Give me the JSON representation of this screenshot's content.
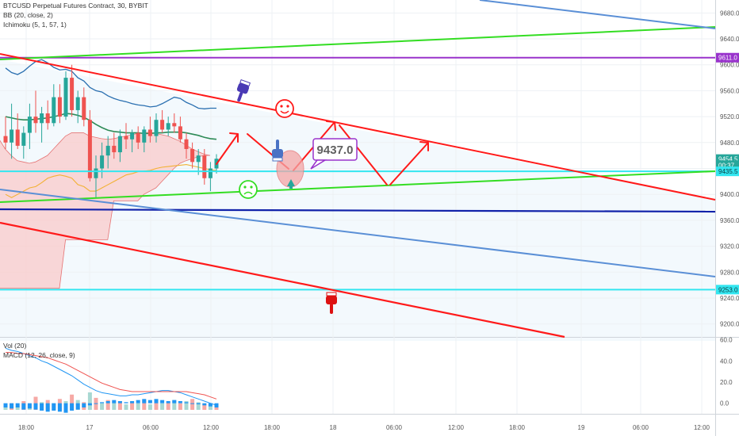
{
  "header": {
    "symbol_line": "BTCUSD Perpetual Futures Contract, 30, BYBIT",
    "bb_line": "BB (20, close, 2)",
    "ichimoku_line": "Ichimoku (5, 1, 57, 1)"
  },
  "volume_panel": {
    "vol_label": "Vol (20)",
    "macd_label": "MACD (12, 26, close, 9)"
  },
  "annotation": {
    "text": "9437.0"
  },
  "colors": {
    "candle_up": "#26a69a",
    "candle_down": "#ef5350",
    "trend_red": "#ff1a1a",
    "trend_green": "#33dd22",
    "trend_blue": "#5a8fd6",
    "hline_cyan": "#33e6f0",
    "hline_purple": "#9933cc",
    "hline_navy": "#1122aa",
    "channel_fill": "#eef6fc",
    "cloud_fill": "#f9c9c9"
  },
  "chart_data": [
    {
      "type": "candlestick",
      "title": "BTCUSD Perpetual Futures Contract, 30, BYBIT",
      "ylim": [
        9180,
        9700
      ],
      "y_ticks": [
        "9680.0",
        "9640.0",
        "9600.0",
        "9560.0",
        "9520.0",
        "9480.0",
        "9440.0",
        "9400.0",
        "9360.0",
        "9320.0",
        "9280.0",
        "9240.0",
        "9200.0"
      ],
      "x_ticks": [
        "18:00",
        "17",
        "06:00",
        "12:00",
        "18:00",
        "18",
        "06:00",
        "12:00",
        "18:00",
        "19",
        "06:00",
        "12:00"
      ],
      "price_labels": [
        {
          "text": "9611.0",
          "value": 9611,
          "color": "#9933cc"
        },
        {
          "text": "9454.5",
          "value": 9454.5,
          "color": "#26a69a"
        },
        {
          "text": "00:37",
          "value": 9445,
          "color": "#26a69a"
        },
        {
          "text": "9435.5",
          "value": 9435.5,
          "color": "#33e6f0"
        },
        {
          "text": "9253.0",
          "value": 9253,
          "color": "#33e6f0"
        }
      ],
      "horizontal_levels": [
        {
          "value": 9611,
          "color": "#9933cc"
        },
        {
          "value": 9435.5,
          "color": "#33e6f0"
        },
        {
          "value": 9253,
          "color": "#33e6f0"
        },
        {
          "value": 9372,
          "color": "#1122aa"
        }
      ],
      "candles": [
        {
          "o": 9490,
          "h": 9520,
          "l": 9470,
          "c": 9480
        },
        {
          "o": 9480,
          "h": 9540,
          "l": 9455,
          "c": 9500
        },
        {
          "o": 9500,
          "h": 9525,
          "l": 9470,
          "c": 9475
        },
        {
          "o": 9475,
          "h": 9505,
          "l": 9455,
          "c": 9495
        },
        {
          "o": 9495,
          "h": 9540,
          "l": 9470,
          "c": 9520
        },
        {
          "o": 9520,
          "h": 9560,
          "l": 9495,
          "c": 9510
        },
        {
          "o": 9510,
          "h": 9535,
          "l": 9480,
          "c": 9525
        },
        {
          "o": 9525,
          "h": 9545,
          "l": 9500,
          "c": 9510
        },
        {
          "o": 9510,
          "h": 9570,
          "l": 9505,
          "c": 9550
        },
        {
          "o": 9550,
          "h": 9570,
          "l": 9510,
          "c": 9520
        },
        {
          "o": 9520,
          "h": 9590,
          "l": 9515,
          "c": 9580
        },
        {
          "o": 9580,
          "h": 9600,
          "l": 9520,
          "c": 9530
        },
        {
          "o": 9530,
          "h": 9560,
          "l": 9510,
          "c": 9550
        },
        {
          "o": 9550,
          "h": 9565,
          "l": 9505,
          "c": 9515
        },
        {
          "o": 9515,
          "h": 9530,
          "l": 9420,
          "c": 9425
        },
        {
          "o": 9425,
          "h": 9460,
          "l": 9395,
          "c": 9440
        },
        {
          "o": 9440,
          "h": 9480,
          "l": 9425,
          "c": 9460
        },
        {
          "o": 9460,
          "h": 9490,
          "l": 9440,
          "c": 9475
        },
        {
          "o": 9475,
          "h": 9495,
          "l": 9455,
          "c": 9465
        },
        {
          "o": 9465,
          "h": 9500,
          "l": 9450,
          "c": 9490
        },
        {
          "o": 9490,
          "h": 9510,
          "l": 9470,
          "c": 9485
        },
        {
          "o": 9485,
          "h": 9500,
          "l": 9465,
          "c": 9495
        },
        {
          "o": 9495,
          "h": 9505,
          "l": 9470,
          "c": 9480
        },
        {
          "o": 9480,
          "h": 9505,
          "l": 9465,
          "c": 9500
        },
        {
          "o": 9500,
          "h": 9520,
          "l": 9480,
          "c": 9490
        },
        {
          "o": 9490,
          "h": 9525,
          "l": 9480,
          "c": 9515
        },
        {
          "o": 9515,
          "h": 9530,
          "l": 9495,
          "c": 9500
        },
        {
          "o": 9500,
          "h": 9520,
          "l": 9490,
          "c": 9510
        },
        {
          "o": 9510,
          "h": 9525,
          "l": 9495,
          "c": 9505
        },
        {
          "o": 9505,
          "h": 9520,
          "l": 9480,
          "c": 9485
        },
        {
          "o": 9485,
          "h": 9495,
          "l": 9455,
          "c": 9470
        },
        {
          "o": 9470,
          "h": 9480,
          "l": 9440,
          "c": 9450
        },
        {
          "o": 9450,
          "h": 9470,
          "l": 9430,
          "c": 9460
        },
        {
          "o": 9460,
          "h": 9470,
          "l": 9415,
          "c": 9425
        },
        {
          "o": 9425,
          "h": 9450,
          "l": 9405,
          "c": 9440
        },
        {
          "o": 9440,
          "h": 9462,
          "l": 9432,
          "c": 9455
        }
      ],
      "bb_middle": [
        9520,
        9518,
        9516,
        9515,
        9515,
        9516,
        9517,
        9518,
        9520,
        9522,
        9525,
        9524,
        9522,
        9519,
        9514,
        9508,
        9503,
        9499,
        9497,
        9496,
        9495,
        9495,
        9495,
        9494,
        9494,
        9495,
        9495,
        9496,
        9496,
        9496,
        9495,
        9493,
        9491,
        9488,
        9486,
        9485
      ],
      "bb_upper": [
        9595,
        9588,
        9585,
        9590,
        9598,
        9605,
        9608,
        9603,
        9596,
        9592,
        9593,
        9590,
        9580,
        9575,
        9565,
        9560,
        9558,
        9552,
        9548,
        9545,
        9543,
        9540,
        9538,
        9537,
        9535,
        9536,
        9540,
        9545,
        9550,
        9548,
        9542,
        9538,
        9533,
        9532,
        9533,
        9533
      ],
      "bb_lower": [
        9400,
        9395,
        9400,
        9405,
        9410,
        9412,
        9418,
        9425,
        9428,
        9430,
        9428,
        9425,
        9415,
        9412,
        9405,
        9405,
        9410,
        9415,
        9420,
        9425,
        9430,
        9432,
        9435,
        9436,
        9437,
        9440,
        9442,
        9443,
        9444,
        9445,
        9446,
        9444,
        9442,
        9440,
        9438,
        9437
      ],
      "cloud_span_a": [
        9485,
        9470,
        9460,
        9452,
        9450,
        9448,
        9450,
        9455,
        9460,
        9470,
        9480,
        9490,
        9495,
        9495,
        9495,
        9490,
        9488,
        9486,
        9485,
        9486,
        9488,
        9490,
        9492,
        9494,
        9495,
        9496,
        9494,
        9492,
        9490,
        9486,
        9482,
        9476,
        9470,
        9466,
        9462,
        9460
      ],
      "cloud_span_b": [
        9255,
        9255,
        9255,
        9255,
        9255,
        9255,
        9255,
        9255,
        9255,
        9255,
        9255,
        9330,
        9330,
        9330,
        9330,
        9330,
        9330,
        9330,
        9330,
        9390,
        9390,
        9390,
        9390,
        9390,
        9400,
        9405,
        9410,
        9420,
        9430,
        9440,
        9448,
        9452,
        9455,
        9458,
        9460,
        9460
      ],
      "annotation_value": 9437.0
    },
    {
      "type": "bar",
      "title": "MACD (12, 26, close, 9)",
      "ylim": [
        -10,
        62
      ],
      "y_ticks": [
        "60.0",
        "40.0",
        "20.0",
        "0.0"
      ],
      "volume": [
        4,
        6,
        3,
        8,
        5,
        12,
        7,
        9,
        6,
        10,
        8,
        14,
        9,
        7,
        16,
        11,
        6,
        9,
        7,
        8,
        5,
        7,
        6,
        9,
        5,
        8,
        6,
        7,
        9,
        6,
        8,
        10,
        7,
        5,
        6,
        4
      ],
      "histogram": [
        -4,
        -5,
        -4,
        -6,
        -5,
        -6,
        -7,
        -8,
        -7,
        -8,
        -9,
        -7,
        -6,
        -4,
        -2,
        0,
        1,
        2,
        3,
        2,
        1,
        2,
        3,
        4,
        3,
        4,
        3,
        2,
        3,
        2,
        1,
        0,
        -1,
        -2,
        -3,
        -4
      ],
      "macd": [
        52,
        50,
        49,
        47,
        45,
        43,
        40,
        38,
        35,
        32,
        29,
        26,
        22,
        18,
        15,
        12,
        10,
        9,
        8,
        7,
        7,
        8,
        8,
        9,
        10,
        11,
        12,
        12,
        11,
        10,
        8,
        6,
        4,
        2,
        0,
        -2
      ],
      "signal": [
        48,
        48,
        47,
        47,
        46,
        45,
        44,
        43,
        41,
        39,
        37,
        34,
        31,
        28,
        25,
        22,
        19,
        17,
        15,
        13,
        12,
        11,
        11,
        11,
        11,
        11,
        11,
        11,
        11,
        11,
        11,
        10,
        9,
        8,
        6,
        4
      ]
    }
  ]
}
